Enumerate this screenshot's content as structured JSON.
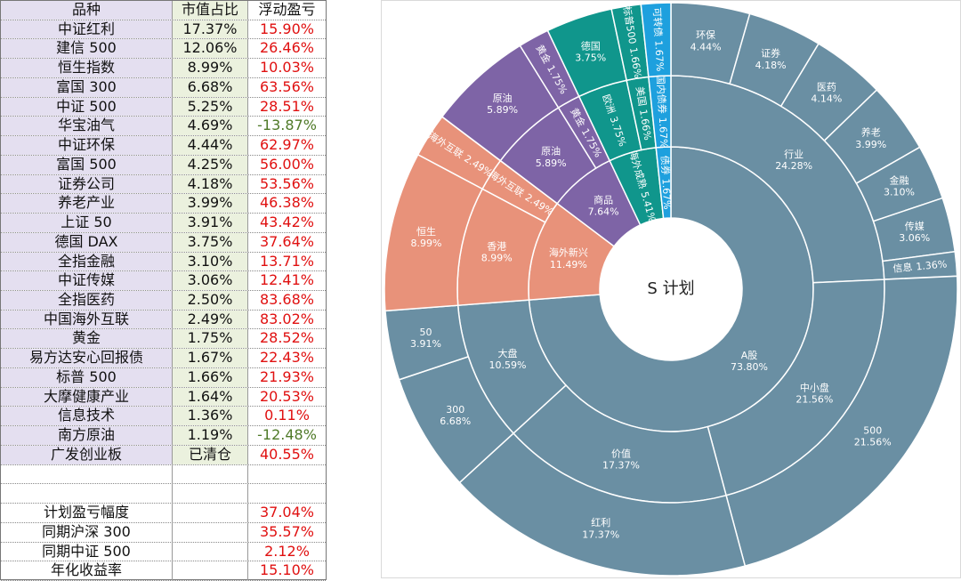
{
  "table": {
    "header": [
      "品种",
      "市值占比",
      "浮动盈亏"
    ],
    "rows": [
      [
        "中证红利",
        "17.37%",
        "15.90%"
      ],
      [
        "建信 500",
        "12.06%",
        "26.46%"
      ],
      [
        "恒生指数",
        "8.99%",
        "10.03%"
      ],
      [
        "富国 300",
        "6.68%",
        "63.56%"
      ],
      [
        "中证 500",
        "5.25%",
        "28.51%"
      ],
      [
        "华宝油气",
        "4.69%",
        "-13.87%"
      ],
      [
        "中证环保",
        "4.44%",
        "62.97%"
      ],
      [
        "富国 500",
        "4.25%",
        "56.00%"
      ],
      [
        "证券公司",
        "4.18%",
        "53.56%"
      ],
      [
        "养老产业",
        "3.99%",
        "46.38%"
      ],
      [
        "上证 50",
        "3.91%",
        "43.42%"
      ],
      [
        "德国 DAX",
        "3.75%",
        "37.64%"
      ],
      [
        "全指金融",
        "3.10%",
        "13.71%"
      ],
      [
        "中证传媒",
        "3.06%",
        "12.41%"
      ],
      [
        "全指医药",
        "2.50%",
        "83.68%"
      ],
      [
        "中国海外互联",
        "2.49%",
        "83.02%"
      ],
      [
        "黄金",
        "1.75%",
        "28.52%"
      ],
      [
        "易方达安心回报债",
        "1.67%",
        "22.43%"
      ],
      [
        "标普 500",
        "1.66%",
        "21.93%"
      ],
      [
        "大摩健康产业",
        "1.64%",
        "20.53%"
      ],
      [
        "信息技术",
        "1.36%",
        "0.11%"
      ],
      [
        "南方原油",
        "1.19%",
        "-12.48%"
      ],
      [
        "广发创业板",
        "已清仓",
        "40.55%"
      ]
    ],
    "summary": [
      [
        "计划盈亏幅度",
        "37.04%"
      ],
      [
        "同期沪深 300",
        "35.57%"
      ],
      [
        "同期中证 500",
        "2.12%"
      ],
      [
        "年化收益率",
        "15.10%"
      ]
    ]
  },
  "chart_data": {
    "type": "sunburst",
    "title": "S 计划",
    "nodes": [
      {
        "name": "A股",
        "value": 73.8,
        "value_label": "73.80%",
        "color": "#6a8fa3",
        "children": [
          {
            "name": "行业",
            "value": 24.28,
            "value_label": "24.28%",
            "children": [
              {
                "name": "环保",
                "value": 4.44,
                "value_label": "4.44%"
              },
              {
                "name": "证券",
                "value": 4.18,
                "value_label": "4.18%"
              },
              {
                "name": "医药",
                "value": 4.14,
                "value_label": "4.14%"
              },
              {
                "name": "养老",
                "value": 3.99,
                "value_label": "3.99%"
              },
              {
                "name": "金融",
                "value": 3.1,
                "value_label": "3.10%"
              },
              {
                "name": "传媒",
                "value": 3.06,
                "value_label": "3.06%"
              },
              {
                "name": "信息",
                "value": 1.36,
                "value_label": "1.36%"
              }
            ]
          },
          {
            "name": "中小盘",
            "value": 21.56,
            "value_label": "21.56%",
            "children": [
              {
                "name": "500",
                "value": 21.56,
                "value_label": "21.56%"
              }
            ]
          },
          {
            "name": "价值",
            "value": 17.37,
            "value_label": "17.37%",
            "children": [
              {
                "name": "红利",
                "value": 17.37,
                "value_label": "17.37%"
              }
            ]
          },
          {
            "name": "大盘",
            "value": 10.59,
            "value_label": "10.59%",
            "children": [
              {
                "name": "300",
                "value": 6.68,
                "value_label": "6.68%"
              },
              {
                "name": "50",
                "value": 3.91,
                "value_label": "3.91%"
              }
            ]
          }
        ]
      },
      {
        "name": "海外新兴",
        "value": 11.49,
        "value_label": "11.49%",
        "color": "#e8927a",
        "children": [
          {
            "name": "香港",
            "value": 8.99,
            "value_label": "8.99%",
            "children": [
              {
                "name": "恒生",
                "value": 8.99,
                "value_label": "8.99%"
              }
            ]
          },
          {
            "name": "海外互联",
            "value": 2.49,
            "value_label": "2.49%",
            "children": [
              {
                "name": "海外互联",
                "value": 2.49,
                "value_label": "2.49%"
              }
            ]
          }
        ]
      },
      {
        "name": "商品",
        "value": 7.64,
        "value_label": "7.64%",
        "color": "#7e64a6",
        "children": [
          {
            "name": "原油",
            "value": 5.89,
            "value_label": "5.89%",
            "children": [
              {
                "name": "原油",
                "value": 5.89,
                "value_label": "5.89%"
              }
            ]
          },
          {
            "name": "黄金",
            "value": 1.75,
            "value_label": "1.75%",
            "children": [
              {
                "name": "黄金",
                "value": 1.75,
                "value_label": "1.75%"
              }
            ]
          }
        ]
      },
      {
        "name": "海外成熟",
        "value": 5.41,
        "value_label": "5.41%",
        "color": "#10968c",
        "children": [
          {
            "name": "欧洲",
            "value": 3.75,
            "value_label": "3.75%",
            "children": [
              {
                "name": "德国",
                "value": 3.75,
                "value_label": "3.75%"
              }
            ]
          },
          {
            "name": "美国",
            "value": 1.66,
            "value_label": "1.66%",
            "children": [
              {
                "name": "标普500",
                "value": 1.66,
                "value_label": "1.66%"
              }
            ]
          }
        ]
      },
      {
        "name": "债券",
        "value": 1.67,
        "value_label": "1.67%",
        "color": "#1ea0de",
        "children": [
          {
            "name": "国内债券",
            "value": 1.67,
            "value_label": "1.67%",
            "children": [
              {
                "name": "可转债",
                "value": 1.67,
                "value_label": "1.67%"
              }
            ]
          }
        ]
      }
    ]
  }
}
